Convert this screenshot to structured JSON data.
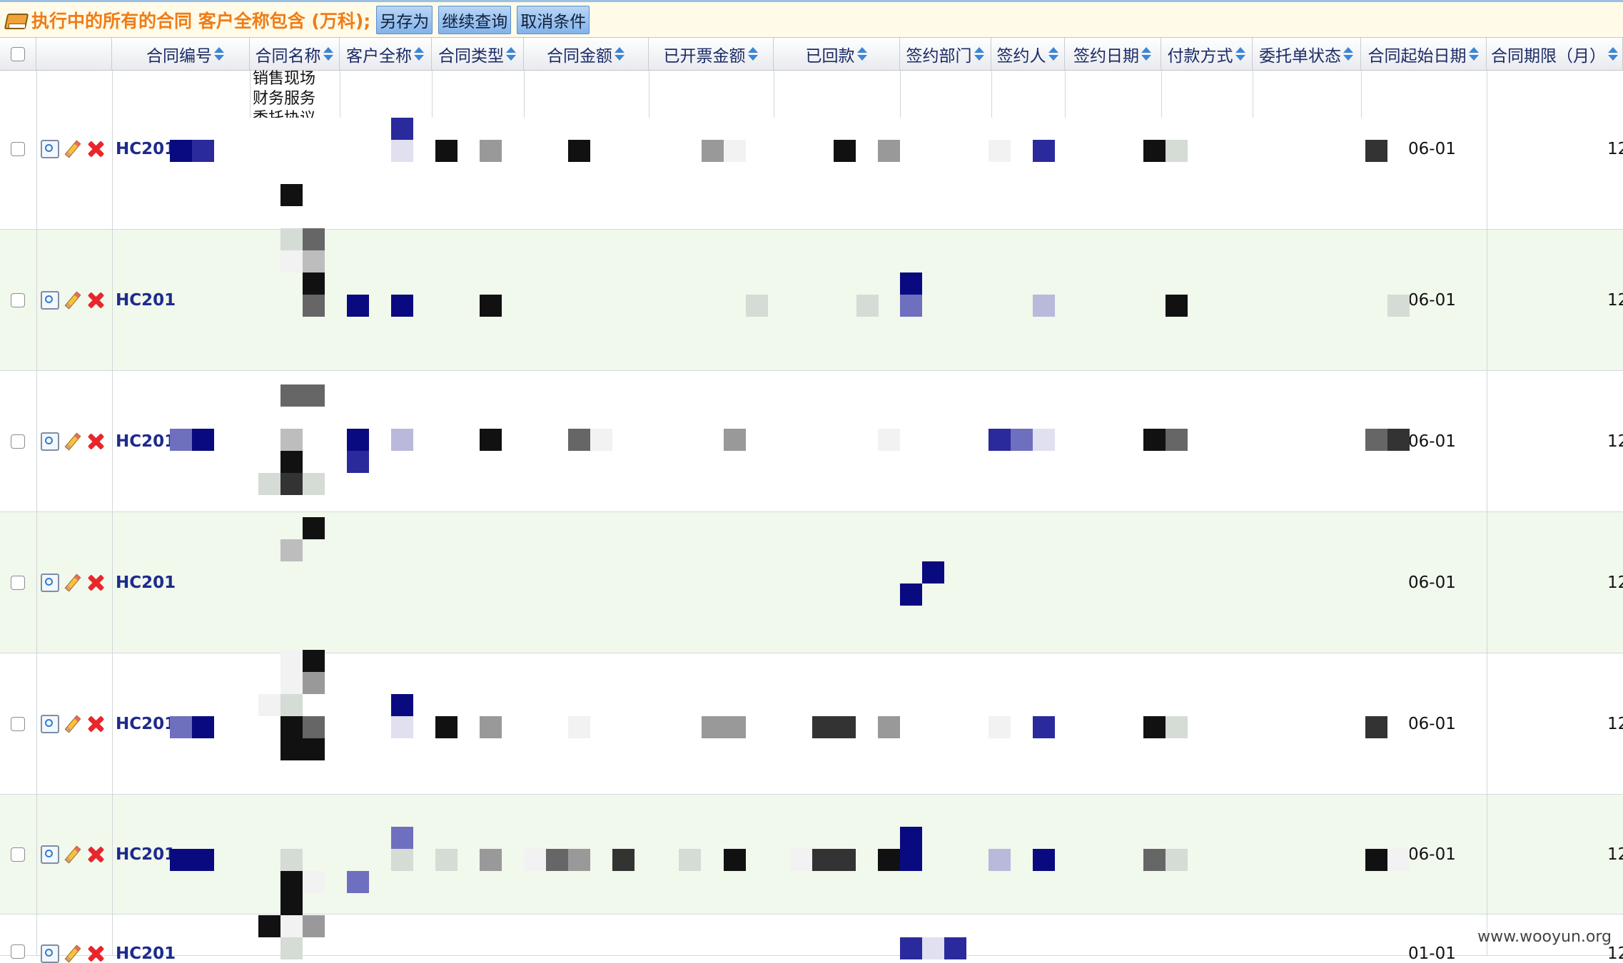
{
  "query": {
    "title": "执行中的所有的合同 客户全称包含 (万科);",
    "buttons": [
      "另存为",
      "继续查询",
      "取消条件"
    ]
  },
  "table": {
    "columns": [
      "合同编号",
      "合同名称",
      "客户全称",
      "合同类型",
      "合同金额",
      "已开票金额",
      "已回款",
      "签约部门",
      "签约人",
      "签约日期",
      "付款方式",
      "委托单状态",
      "合同起始日期",
      "合同期限（月）"
    ],
    "first_row_name_fragment": "销售现场财务服务委托协议",
    "rows": [
      {
        "code": "HC201",
        "start_date": "06-01",
        "term": "12"
      },
      {
        "code": "HC201",
        "start_date": "06-01",
        "term": "12"
      },
      {
        "code": "HC201",
        "start_date": "06-01",
        "term": "12"
      },
      {
        "code": "HC201",
        "start_date": "06-01",
        "term": "12"
      },
      {
        "code": "HC201",
        "start_date": "06-01",
        "term": "12"
      },
      {
        "code": "HC201",
        "start_date": "06-01",
        "term": "12"
      },
      {
        "code": "HC201",
        "start_date": "01-01",
        "term": "12"
      }
    ]
  },
  "watermark": "www.wooyun.org",
  "colors": {
    "accent": "#f07c18",
    "link": "#1d2b8c",
    "row_alt": "#f1f8ec",
    "mosaic_blue": "#0a0a80"
  }
}
